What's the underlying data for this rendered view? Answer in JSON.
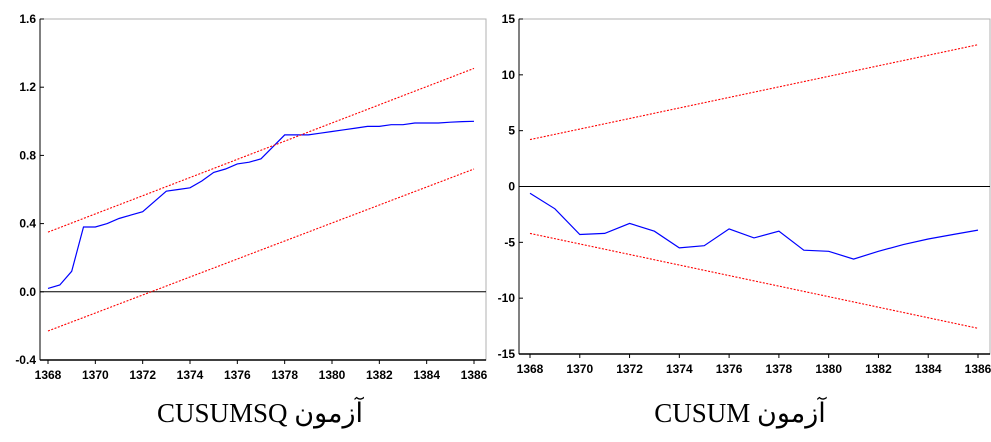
{
  "colors": {
    "series": "#0000ff",
    "bounds": "#ff0000",
    "axis": "#000000"
  },
  "chart_data": [
    {
      "type": "line",
      "caption": "آزمون CUSUMSQ",
      "xlim": [
        1367.4,
        1386
      ],
      "ylim": [
        -0.4,
        1.6
      ],
      "x_ticks": [
        "1368",
        "1370",
        "1372",
        "1374",
        "1376",
        "1378",
        "1380",
        "1382",
        "1384",
        "1386"
      ],
      "y_ticks": [
        "-0.4",
        "0.0",
        "0.4",
        "0.8",
        "1.2",
        "1.6"
      ],
      "zero_line": 0,
      "series": [
        {
          "role": "statistic",
          "points": [
            [
              1368.0,
              0.02
            ],
            [
              1368.5,
              0.04
            ],
            [
              1369.0,
              0.12
            ],
            [
              1369.5,
              0.38
            ],
            [
              1370.0,
              0.38
            ],
            [
              1370.5,
              0.4
            ],
            [
              1371.0,
              0.43
            ],
            [
              1371.5,
              0.45
            ],
            [
              1372.0,
              0.47
            ],
            [
              1372.5,
              0.53
            ],
            [
              1373.0,
              0.59
            ],
            [
              1373.5,
              0.6
            ],
            [
              1374.0,
              0.61
            ],
            [
              1374.5,
              0.65
            ],
            [
              1375.0,
              0.7
            ],
            [
              1375.5,
              0.72
            ],
            [
              1376.0,
              0.75
            ],
            [
              1376.5,
              0.76
            ],
            [
              1377.0,
              0.78
            ],
            [
              1377.5,
              0.85
            ],
            [
              1378.0,
              0.92
            ],
            [
              1378.5,
              0.92
            ],
            [
              1379.0,
              0.92
            ],
            [
              1379.5,
              0.93
            ],
            [
              1380.0,
              0.94
            ],
            [
              1380.5,
              0.95
            ],
            [
              1381.0,
              0.96
            ],
            [
              1381.5,
              0.97
            ],
            [
              1382.0,
              0.97
            ],
            [
              1382.5,
              0.98
            ],
            [
              1383.0,
              0.98
            ],
            [
              1383.5,
              0.99
            ],
            [
              1384.0,
              0.99
            ],
            [
              1384.5,
              0.99
            ],
            [
              1385.0,
              0.995
            ],
            [
              1385.5,
              0.998
            ],
            [
              1386.0,
              1.0
            ]
          ]
        },
        {
          "role": "upper bound",
          "points": [
            [
              1368.0,
              0.35
            ],
            [
              1386.0,
              1.31
            ]
          ]
        },
        {
          "role": "lower bound",
          "points": [
            [
              1368.0,
              -0.23
            ],
            [
              1386.0,
              0.72
            ]
          ]
        }
      ]
    },
    {
      "type": "line",
      "caption": "آزمون CUSUM",
      "xlim": [
        1367.4,
        1386
      ],
      "ylim": [
        -15,
        15
      ],
      "x_ticks": [
        "1368",
        "1370",
        "1372",
        "1374",
        "1376",
        "1378",
        "1380",
        "1382",
        "1384",
        "1386"
      ],
      "y_ticks": [
        "-15",
        "-10",
        "-5",
        "0",
        "5",
        "10",
        "15"
      ],
      "zero_line": 0,
      "series": [
        {
          "role": "statistic",
          "points": [
            [
              1368.0,
              -0.6
            ],
            [
              1369.0,
              -2.0
            ],
            [
              1370.0,
              -4.3
            ],
            [
              1371.0,
              -4.2
            ],
            [
              1372.0,
              -3.3
            ],
            [
              1373.0,
              -4.0
            ],
            [
              1374.0,
              -5.5
            ],
            [
              1375.0,
              -5.3
            ],
            [
              1376.0,
              -3.8
            ],
            [
              1377.0,
              -4.6
            ],
            [
              1378.0,
              -4.0
            ],
            [
              1379.0,
              -5.7
            ],
            [
              1380.0,
              -5.8
            ],
            [
              1381.0,
              -6.5
            ],
            [
              1382.0,
              -5.8
            ],
            [
              1383.0,
              -5.2
            ],
            [
              1384.0,
              -4.7
            ],
            [
              1385.0,
              -4.3
            ],
            [
              1386.0,
              -3.9
            ]
          ]
        },
        {
          "role": "upper bound",
          "points": [
            [
              1368.0,
              4.2
            ],
            [
              1386.0,
              12.7
            ]
          ]
        },
        {
          "role": "lower bound",
          "points": [
            [
              1368.0,
              -4.2
            ],
            [
              1386.0,
              -12.7
            ]
          ]
        }
      ]
    }
  ]
}
